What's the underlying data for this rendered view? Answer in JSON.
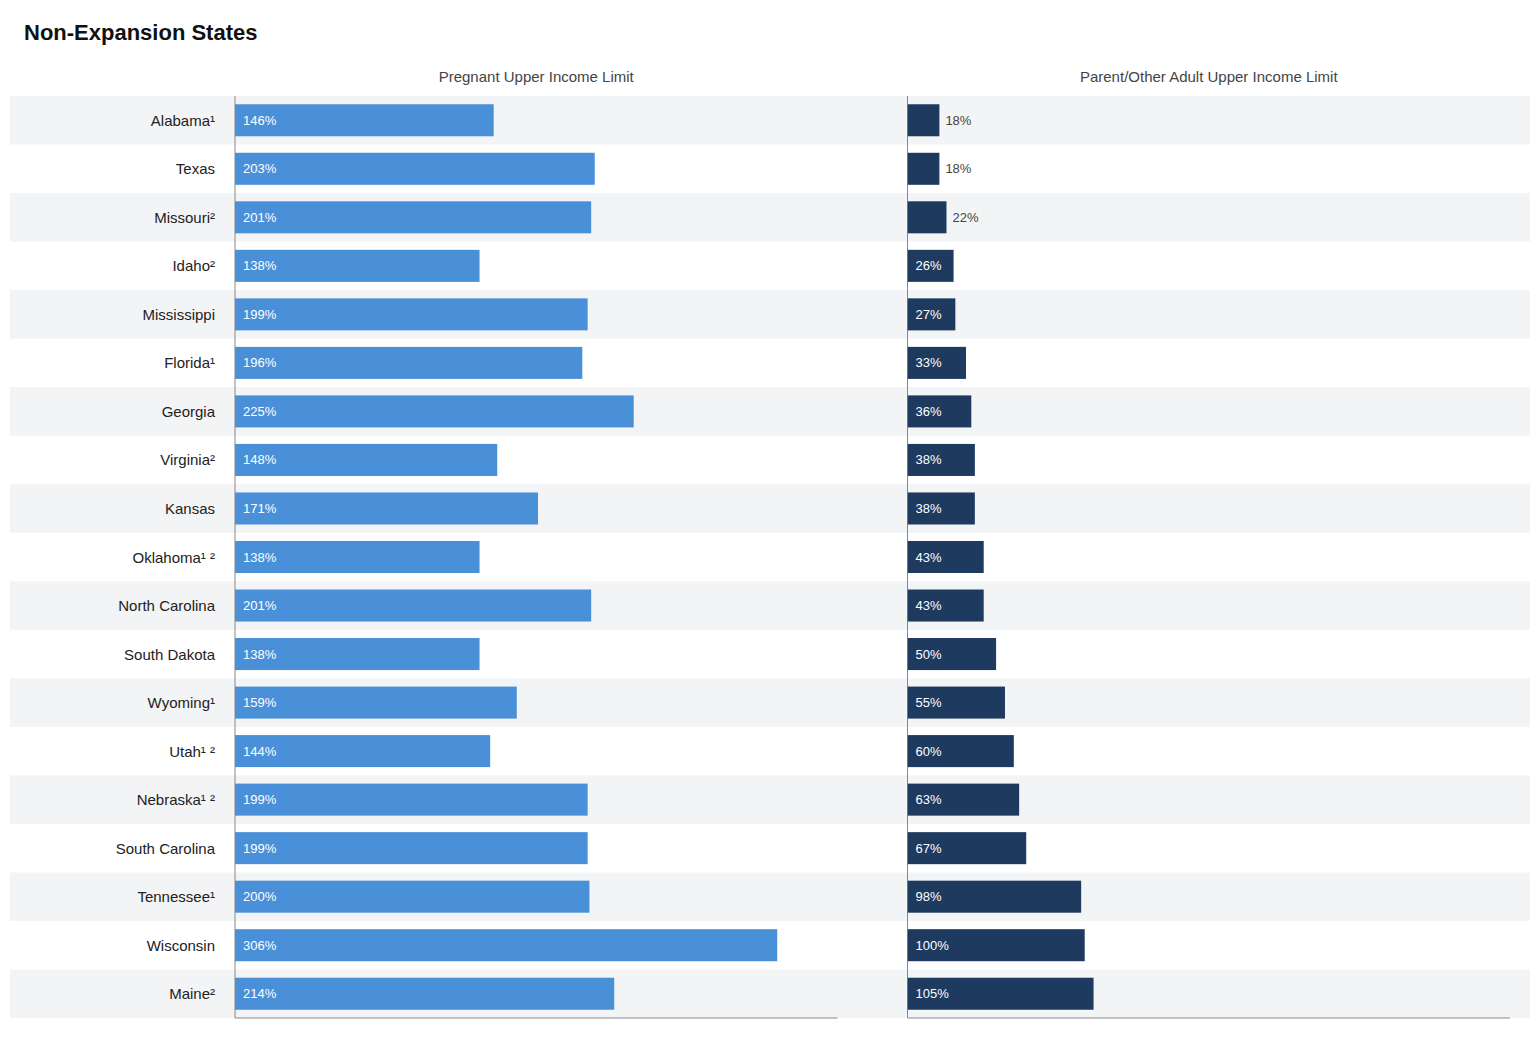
{
  "chart_data": {
    "type": "bar",
    "orientation": "horizontal",
    "title": "Non-Expansion States",
    "categories": [
      "Alabama¹",
      "Texas",
      "Missouri²",
      "Idaho²",
      "Mississippi",
      "Florida¹",
      "Georgia",
      "Virginia²",
      "Kansas",
      "Oklahoma¹ ²",
      "North Carolina",
      "South Dakota",
      "Wyoming¹",
      "Utah¹ ²",
      "Nebraska¹ ²",
      "South Carolina",
      "Tennessee¹",
      "Wisconsin",
      "Maine²"
    ],
    "series": [
      {
        "name": "Pregnant Upper Income Limit",
        "color": "#4a90d9",
        "values": [
          146,
          203,
          201,
          138,
          199,
          196,
          225,
          148,
          171,
          138,
          201,
          138,
          159,
          144,
          199,
          199,
          200,
          306,
          214
        ],
        "value_labels": [
          "146%",
          "203%",
          "201%",
          "138%",
          "199%",
          "196%",
          "225%",
          "148%",
          "171%",
          "138%",
          "201%",
          "138%",
          "159%",
          "144%",
          "199%",
          "199%",
          "200%",
          "306%",
          "214%"
        ]
      },
      {
        "name": "Parent/Other Adult Upper Income Limit",
        "color": "#1e3a5f",
        "values": [
          18,
          18,
          22,
          26,
          27,
          33,
          36,
          38,
          38,
          43,
          43,
          50,
          55,
          60,
          63,
          67,
          98,
          100,
          105
        ],
        "value_labels": [
          "18%",
          "18%",
          "22%",
          "26%",
          "27%",
          "33%",
          "36%",
          "38%",
          "38%",
          "43%",
          "43%",
          "50%",
          "55%",
          "60%",
          "63%",
          "67%",
          "98%",
          "100%",
          "105%"
        ]
      }
    ],
    "xlim": [
      0,
      340
    ],
    "grid": false,
    "data_labels": true,
    "tick_labels": "y"
  }
}
